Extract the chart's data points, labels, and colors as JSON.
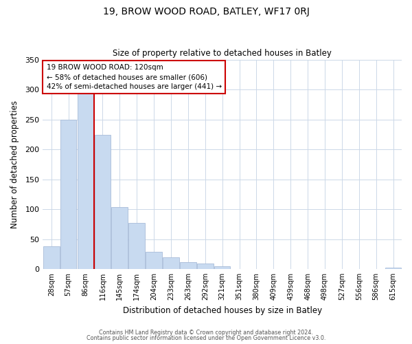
{
  "title": "19, BROW WOOD ROAD, BATLEY, WF17 0RJ",
  "subtitle": "Size of property relative to detached houses in Batley",
  "xlabel": "Distribution of detached houses by size in Batley",
  "ylabel": "Number of detached properties",
  "bar_labels": [
    "28sqm",
    "57sqm",
    "86sqm",
    "116sqm",
    "145sqm",
    "174sqm",
    "204sqm",
    "233sqm",
    "263sqm",
    "292sqm",
    "321sqm",
    "351sqm",
    "380sqm",
    "409sqm",
    "439sqm",
    "468sqm",
    "498sqm",
    "527sqm",
    "556sqm",
    "586sqm",
    "615sqm"
  ],
  "bar_values": [
    38,
    250,
    295,
    225,
    104,
    77,
    29,
    19,
    11,
    9,
    5,
    0,
    0,
    0,
    0,
    0,
    0,
    0,
    0,
    0,
    2
  ],
  "bar_color": "#c8daf0",
  "bar_edge_color": "#a8bcd8",
  "highlight_line_color": "#cc0000",
  "annotation_text": "19 BROW WOOD ROAD: 120sqm\n← 58% of detached houses are smaller (606)\n42% of semi-detached houses are larger (441) →",
  "annotation_box_color": "#ffffff",
  "annotation_box_edge": "#cc0000",
  "ylim": [
    0,
    350
  ],
  "yticks": [
    0,
    50,
    100,
    150,
    200,
    250,
    300,
    350
  ],
  "footer_line1": "Contains HM Land Registry data © Crown copyright and database right 2024.",
  "footer_line2": "Contains public sector information licensed under the Open Government Licence v3.0.",
  "bg_color": "#ffffff",
  "grid_color": "#ccd8e8"
}
